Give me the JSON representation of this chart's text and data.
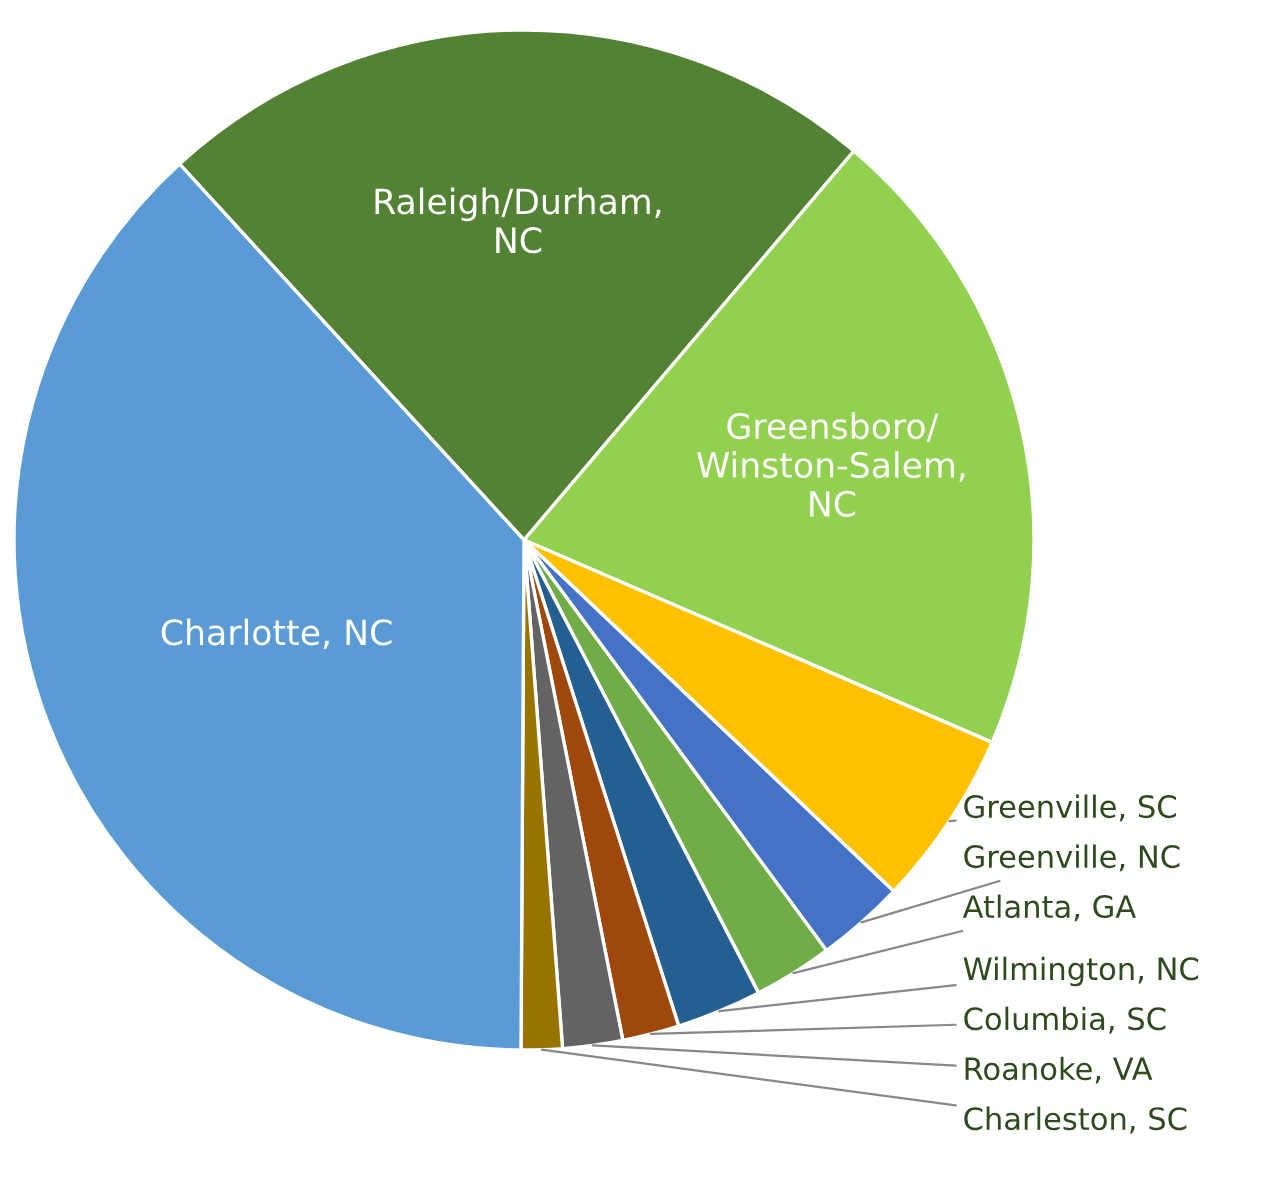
{
  "chart_data": {
    "type": "pie",
    "categories": [
      "Raleigh/Durham, NC",
      "Greensboro/ Winston-Salem, NC",
      "Greenville, SC",
      "Greenville, NC",
      "Atlanta, GA",
      "Wilmington, NC",
      "Columbia, SC",
      "Roanoke, VA",
      "Charleston, SC",
      "Charlotte, NC"
    ],
    "values": [
      23.0,
      20.3,
      5.6,
      2.8,
      2.5,
      2.7,
      1.8,
      1.9,
      1.3,
      38.1
    ],
    "colors": [
      "#548235",
      "#92d050",
      "#ffc000",
      "#4472c4",
      "#70ad47",
      "#255e91",
      "#9e480e",
      "#636363",
      "#997300",
      "#5b9bd5"
    ]
  }
}
